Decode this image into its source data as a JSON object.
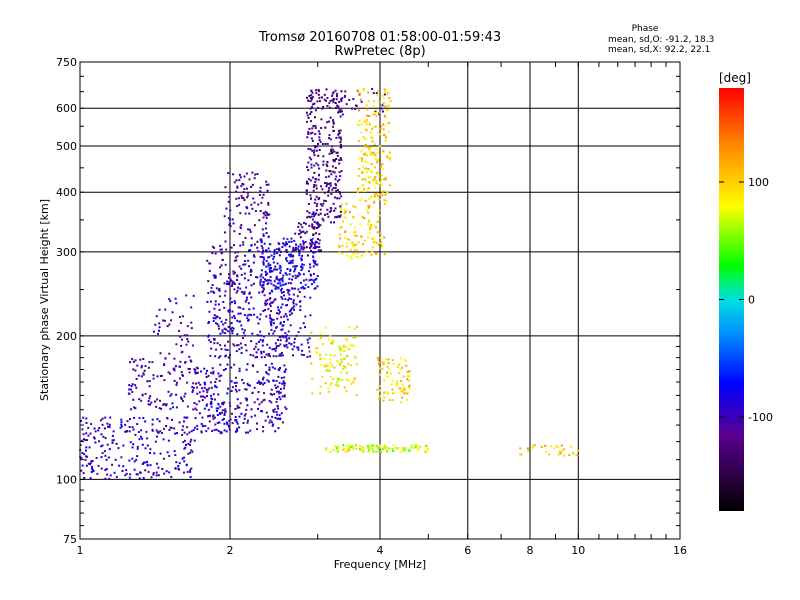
{
  "chart_data": {
    "type": "scatter",
    "title": "Tromsø 20160708 01:58:00-01:59:43",
    "subtitle": "RwPretec (8p)",
    "xlabel": "Frequency [MHz]",
    "ylabel": "Stationary phase Virtual Height [km]",
    "x_scale": "log",
    "y_scale": "log",
    "xlim": [
      1,
      16
    ],
    "ylim": [
      75,
      750
    ],
    "x_ticks": [
      "1",
      "2",
      "4",
      "6",
      "8",
      "10",
      "16"
    ],
    "y_ticks": [
      "75",
      "100",
      "200",
      "300",
      "400",
      "500",
      "600",
      "750"
    ],
    "x_gridlines": [
      2,
      4,
      6,
      8,
      10
    ],
    "y_gridlines": [
      100,
      200,
      300,
      400,
      500,
      600
    ],
    "grid": true,
    "legend": {
      "title": "Phase",
      "line1": "mean, sd,O: -91.2, 18.3",
      "line2": "mean, sd,X:  92.2, 22.1"
    },
    "colorbar": {
      "label": "[deg]",
      "range": [
        -180,
        180
      ],
      "ticks": [
        "100",
        "0",
        "-100"
      ],
      "tick_values": [
        100,
        0,
        -100
      ]
    },
    "series": [
      {
        "mode": "O",
        "phase_deg": -91.2,
        "clusters": [
          {
            "x": [
              1.0,
              1.7
            ],
            "y": [
              100,
              135
            ],
            "n": 260,
            "phase_mean": -95
          },
          {
            "x": [
              1.25,
              1.7
            ],
            "y": [
              140,
              180
            ],
            "n": 110,
            "phase_mean": -100
          },
          {
            "x": [
              1.4,
              1.7
            ],
            "y": [
              170,
              245
            ],
            "n": 50,
            "phase_mean": -105
          },
          {
            "x": [
              1.7,
              2.6
            ],
            "y": [
              125,
              175
            ],
            "n": 320,
            "phase_mean": -95
          },
          {
            "x": [
              1.8,
              2.7
            ],
            "y": [
              180,
              310
            ],
            "n": 430,
            "phase_mean": -95
          },
          {
            "x": [
              1.95,
              2.4
            ],
            "y": [
              310,
              440
            ],
            "n": 110,
            "phase_mean": -110
          },
          {
            "x": [
              2.3,
              3.0
            ],
            "y": [
              250,
              320
            ],
            "n": 200,
            "phase_mean": -80
          },
          {
            "x": [
              2.4,
              2.9
            ],
            "y": [
              180,
              250
            ],
            "n": 70,
            "phase_mean": -90
          },
          {
            "x": [
              2.7,
              3.05
            ],
            "y": [
              300,
              345
            ],
            "n": 60,
            "phase_mean": -120
          },
          {
            "x": [
              2.85,
              3.35
            ],
            "y": [
              340,
              660
            ],
            "n": 300,
            "phase_mean": -120
          },
          {
            "x": [
              3.2,
              4.1
            ],
            "y": [
              580,
              660
            ],
            "n": 30,
            "phase_mean": -100
          }
        ]
      },
      {
        "mode": "X",
        "phase_deg": 92.2,
        "clusters": [
          {
            "x": [
              3.3,
              4.1
            ],
            "y": [
              290,
              380
            ],
            "n": 110,
            "phase_mean": 100
          },
          {
            "x": [
              3.6,
              4.2
            ],
            "y": [
              380,
              660
            ],
            "n": 200,
            "phase_mean": 100
          },
          {
            "x": [
              2.9,
              3.6
            ],
            "y": [
              150,
              210
            ],
            "n": 110,
            "phase_mean": 85
          },
          {
            "x": [
              3.95,
              4.6
            ],
            "y": [
              145,
              180
            ],
            "n": 80,
            "phase_mean": 100
          },
          {
            "x": [
              3.1,
              5.0
            ],
            "y": [
              114,
              118
            ],
            "n": 110,
            "phase_mean": 70
          },
          {
            "x": [
              7.6,
              10.0
            ],
            "y": [
              112,
              118
            ],
            "n": 30,
            "phase_mean": 100
          }
        ]
      }
    ]
  }
}
